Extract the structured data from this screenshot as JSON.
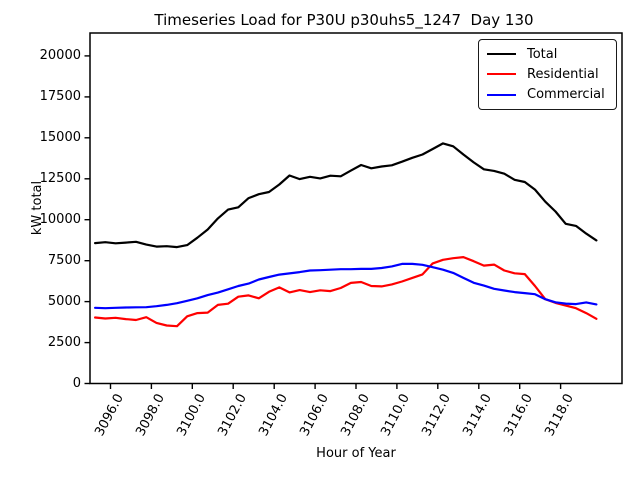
{
  "chart_data": {
    "type": "line",
    "title": "Timeseries Load for P30U p30uhs5_1247  Day 130",
    "xlabel": "Hour of Year",
    "ylabel": "kW total",
    "xlim": [
      3095,
      3121
    ],
    "ylim": [
      0,
      21400
    ],
    "grid": false,
    "legend_position": "upper right",
    "x_ticks": [
      3096,
      3098,
      3100,
      3102,
      3104,
      3106,
      3108,
      3110,
      3112,
      3114,
      3116,
      3118
    ],
    "x_tick_labels": [
      "3096.0",
      "3098.0",
      "3100.0",
      "3102.0",
      "3104.0",
      "3106.0",
      "3108.0",
      "3110.0",
      "3112.0",
      "3114.0",
      "3116.0",
      "3118.0"
    ],
    "y_ticks": [
      0,
      2500,
      5000,
      7500,
      10000,
      12500,
      15000,
      17500,
      20000
    ],
    "y_tick_labels": [
      "0",
      "2500",
      "5000",
      "7500",
      "10000",
      "12500",
      "15000",
      "17500",
      "20000"
    ],
    "x": [
      3095.25,
      3095.75,
      3096.25,
      3096.75,
      3097.25,
      3097.75,
      3098.25,
      3098.75,
      3099.25,
      3099.75,
      3100.25,
      3100.75,
      3101.25,
      3101.75,
      3102.25,
      3102.75,
      3103.25,
      3103.75,
      3104.25,
      3104.75,
      3105.25,
      3105.75,
      3106.25,
      3106.75,
      3107.25,
      3107.75,
      3108.25,
      3108.75,
      3109.25,
      3109.75,
      3110.25,
      3110.75,
      3111.25,
      3111.75,
      3112.25,
      3112.75,
      3113.25,
      3113.75,
      3114.25,
      3114.75,
      3115.25,
      3115.75,
      3116.25,
      3116.75,
      3117.25,
      3117.75,
      3118.25,
      3118.75,
      3119.25,
      3119.75
    ],
    "series": [
      {
        "name": "Total",
        "color": "#000000",
        "values": [
          8570,
          8630,
          8560,
          8600,
          8650,
          8480,
          8360,
          8380,
          8330,
          8450,
          8900,
          9400,
          10080,
          10620,
          10760,
          11320,
          11560,
          11690,
          12150,
          12700,
          12480,
          12620,
          12520,
          12690,
          12650,
          13000,
          13340,
          13140,
          13250,
          13320,
          13540,
          13780,
          13980,
          14320,
          14660,
          14480,
          13980,
          13500,
          13080,
          12980,
          12810,
          12440,
          12300,
          11840,
          11100,
          10500,
          9750,
          9620,
          9150,
          8740
        ]
      },
      {
        "name": "Residential",
        "color": "#ff0000",
        "values": [
          4030,
          3970,
          4010,
          3930,
          3880,
          4050,
          3700,
          3540,
          3500,
          4100,
          4300,
          4330,
          4800,
          4870,
          5300,
          5380,
          5200,
          5600,
          5870,
          5560,
          5700,
          5580,
          5690,
          5640,
          5830,
          6140,
          6200,
          5950,
          5930,
          6050,
          6230,
          6450,
          6660,
          7330,
          7550,
          7650,
          7720,
          7470,
          7200,
          7260,
          6900,
          6730,
          6680,
          5950,
          5150,
          4920,
          4760,
          4600,
          4300,
          3950
        ]
      },
      {
        "name": "Commercial",
        "color": "#0000ff",
        "values": [
          4620,
          4600,
          4620,
          4640,
          4650,
          4660,
          4720,
          4800,
          4900,
          5050,
          5200,
          5400,
          5550,
          5750,
          5950,
          6100,
          6350,
          6500,
          6650,
          6720,
          6800,
          6900,
          6920,
          6950,
          6980,
          6980,
          7000,
          7000,
          7050,
          7150,
          7300,
          7300,
          7250,
          7100,
          6950,
          6750,
          6450,
          6150,
          5980,
          5780,
          5680,
          5580,
          5520,
          5450,
          5150,
          4960,
          4880,
          4850,
          4950,
          4830
        ]
      }
    ]
  }
}
